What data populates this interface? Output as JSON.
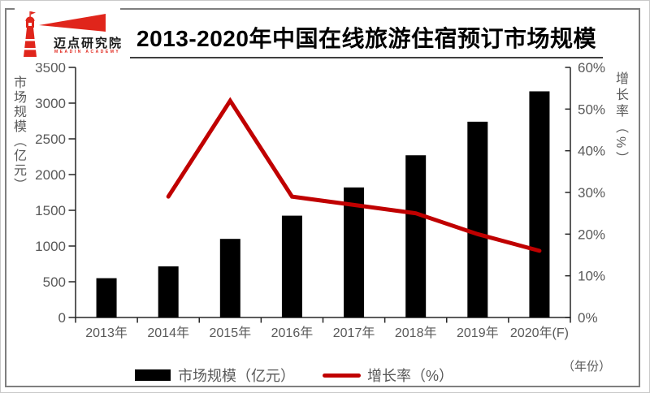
{
  "logo": {
    "name": "迈点研究院",
    "subtitle": "MEADIN ACADEMY"
  },
  "title": "2013-2020年中国在线旅游住宿预订市场规模",
  "axes": {
    "left_title": "市场规模（亿元）",
    "right_title": "增长率（%）",
    "x_note": "（年份）"
  },
  "legend": [
    {
      "label": "市场规模（亿元）",
      "type": "bar",
      "color": "#000000"
    },
    {
      "label": "增长率（%）",
      "type": "line",
      "color": "#c00000"
    }
  ],
  "colors": {
    "bar": "#000000",
    "line": "#c00000",
    "axis": "#262626",
    "tick_text": "#595959"
  },
  "chart_data": {
    "type": "bar",
    "subtype": "bar-line combo, dual axis",
    "title": "2013-2020年中国在线旅游住宿预订市场规模",
    "categories": [
      "2013年",
      "2014年",
      "2015年",
      "2016年",
      "2017年",
      "2018年",
      "2019年",
      "2020年(F)"
    ],
    "series": [
      {
        "name": "市场规模（亿元）",
        "type": "bar",
        "axis": "left",
        "color": "#000000",
        "values": [
          550,
          715,
          1100,
          1425,
          1820,
          2270,
          2740,
          3165
        ]
      },
      {
        "name": "增长率（%）",
        "type": "line",
        "axis": "right",
        "color": "#c00000",
        "values": [
          null,
          29,
          52,
          29,
          27,
          25,
          20,
          16
        ]
      }
    ],
    "left_axis": {
      "label": "市场规模（亿元）",
      "min": 0,
      "max": 3500,
      "step": 500,
      "ticks": [
        "0",
        "500",
        "1000",
        "1500",
        "2000",
        "2500",
        "3000",
        "3500"
      ]
    },
    "right_axis": {
      "label": "增长率（%）",
      "min": 0,
      "max": 60,
      "step": 10,
      "format": "percent",
      "ticks": [
        "0%",
        "10%",
        "20%",
        "30%",
        "40%",
        "50%",
        "60%"
      ]
    },
    "xlabel": "（年份）",
    "grid": false,
    "legend_position": "bottom"
  }
}
